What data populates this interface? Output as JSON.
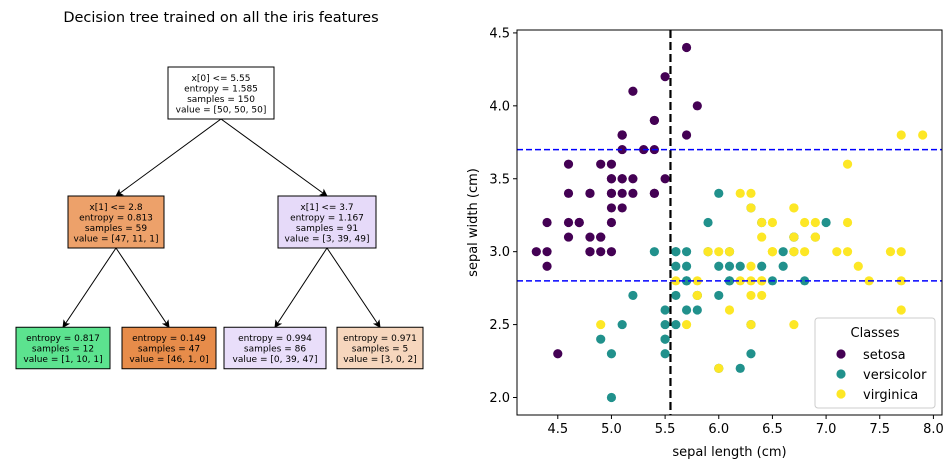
{
  "tree": {
    "title": "Decision tree trained on all the iris features",
    "nodes": [
      {
        "id": "root",
        "lines": [
          "x[0] <= 5.55",
          "entropy = 1.585",
          "samples = 150",
          "value = [50, 50, 50]"
        ],
        "fill": "#ffffff"
      },
      {
        "id": "left",
        "lines": [
          "x[1] <= 2.8",
          "entropy = 0.813",
          "samples = 59",
          "value = [47, 11, 1]"
        ],
        "fill": "#eda16a"
      },
      {
        "id": "right",
        "lines": [
          "x[1] <= 3.7",
          "entropy = 1.167",
          "samples = 91",
          "value = [3, 39, 49]"
        ],
        "fill": "#e6daf9"
      },
      {
        "id": "leaf-ll",
        "lines": [
          "entropy = 0.817",
          "samples = 12",
          "value = [1, 10, 1]"
        ],
        "fill": "#5ce38f"
      },
      {
        "id": "leaf-lr",
        "lines": [
          "entropy = 0.149",
          "samples = 47",
          "value = [46, 1, 0]"
        ],
        "fill": "#e78c4a"
      },
      {
        "id": "leaf-rl",
        "lines": [
          "entropy = 0.994",
          "samples = 86",
          "value = [0, 39, 47]"
        ],
        "fill": "#e9defa"
      },
      {
        "id": "leaf-rr",
        "lines": [
          "entropy = 0.971",
          "samples = 5",
          "value = [3, 0, 2]"
        ],
        "fill": "#f6d6bd"
      }
    ]
  },
  "chart_data": {
    "type": "scatter",
    "xlabel": "sepal length (cm)",
    "ylabel": "sepal width (cm)",
    "xlim": [
      4.12,
      8.08
    ],
    "ylim": [
      1.88,
      4.52
    ],
    "xticks": [
      4.5,
      5.0,
      5.5,
      6.0,
      6.5,
      7.0,
      7.5,
      8.0
    ],
    "yticks": [
      2.0,
      2.5,
      3.0,
      3.5,
      4.0,
      4.5
    ],
    "grid": false,
    "legend": {
      "title": "Classes",
      "placement": "bottom-right"
    },
    "thresholds": {
      "vertical": {
        "x": 5.55,
        "color": "#000000"
      },
      "horizontal": [
        {
          "y": 3.7,
          "color": "#0000ff"
        },
        {
          "y": 2.8,
          "color": "#0000ff"
        }
      ]
    },
    "series": [
      {
        "name": "setosa",
        "color": "#440154",
        "points": [
          [
            5.1,
            3.5
          ],
          [
            4.9,
            3.0
          ],
          [
            4.7,
            3.2
          ],
          [
            4.6,
            3.1
          ],
          [
            5.0,
            3.6
          ],
          [
            5.4,
            3.9
          ],
          [
            4.6,
            3.4
          ],
          [
            5.0,
            3.4
          ],
          [
            4.4,
            2.9
          ],
          [
            4.9,
            3.1
          ],
          [
            5.4,
            3.7
          ],
          [
            4.8,
            3.4
          ],
          [
            4.8,
            3.0
          ],
          [
            4.3,
            3.0
          ],
          [
            5.8,
            4.0
          ],
          [
            5.7,
            4.4
          ],
          [
            5.4,
            3.9
          ],
          [
            5.1,
            3.5
          ],
          [
            5.7,
            3.8
          ],
          [
            5.1,
            3.8
          ],
          [
            5.4,
            3.4
          ],
          [
            5.1,
            3.7
          ],
          [
            4.6,
            3.6
          ],
          [
            5.1,
            3.3
          ],
          [
            4.8,
            3.4
          ],
          [
            5.0,
            3.0
          ],
          [
            5.0,
            3.4
          ],
          [
            5.2,
            3.5
          ],
          [
            5.2,
            3.4
          ],
          [
            4.7,
            3.2
          ],
          [
            4.8,
            3.1
          ],
          [
            5.4,
            3.4
          ],
          [
            5.2,
            4.1
          ],
          [
            5.5,
            4.2
          ],
          [
            4.9,
            3.1
          ],
          [
            5.0,
            3.2
          ],
          [
            5.5,
            3.5
          ],
          [
            4.9,
            3.6
          ],
          [
            4.4,
            3.0
          ],
          [
            5.1,
            3.4
          ],
          [
            5.0,
            3.5
          ],
          [
            4.5,
            2.3
          ],
          [
            4.4,
            3.2
          ],
          [
            5.0,
            3.5
          ],
          [
            5.1,
            3.8
          ],
          [
            4.8,
            3.0
          ],
          [
            5.1,
            3.8
          ],
          [
            4.6,
            3.2
          ],
          [
            5.3,
            3.7
          ],
          [
            5.0,
            3.3
          ]
        ]
      },
      {
        "name": "versicolor",
        "color": "#21918c",
        "points": [
          [
            7.0,
            3.2
          ],
          [
            6.4,
            3.2
          ],
          [
            6.9,
            3.1
          ],
          [
            5.5,
            2.3
          ],
          [
            6.5,
            2.8
          ],
          [
            5.7,
            2.8
          ],
          [
            6.3,
            3.3
          ],
          [
            4.9,
            2.4
          ],
          [
            6.6,
            2.9
          ],
          [
            5.2,
            2.7
          ],
          [
            5.0,
            2.0
          ],
          [
            5.9,
            3.0
          ],
          [
            6.0,
            2.2
          ],
          [
            6.1,
            2.9
          ],
          [
            5.6,
            2.9
          ],
          [
            6.7,
            3.1
          ],
          [
            5.6,
            3.0
          ],
          [
            5.8,
            2.7
          ],
          [
            6.2,
            2.2
          ],
          [
            5.6,
            2.5
          ],
          [
            5.9,
            3.2
          ],
          [
            6.1,
            2.8
          ],
          [
            6.3,
            2.5
          ],
          [
            6.1,
            2.8
          ],
          [
            6.4,
            2.9
          ],
          [
            6.6,
            3.0
          ],
          [
            6.8,
            2.8
          ],
          [
            6.7,
            3.0
          ],
          [
            6.0,
            2.9
          ],
          [
            5.7,
            2.6
          ],
          [
            5.5,
            2.4
          ],
          [
            5.5,
            2.4
          ],
          [
            5.8,
            2.7
          ],
          [
            6.0,
            2.7
          ],
          [
            5.4,
            3.0
          ],
          [
            6.0,
            3.4
          ],
          [
            6.7,
            3.1
          ],
          [
            6.3,
            2.3
          ],
          [
            5.6,
            3.0
          ],
          [
            5.5,
            2.5
          ],
          [
            5.5,
            2.6
          ],
          [
            6.1,
            3.0
          ],
          [
            5.8,
            2.6
          ],
          [
            5.0,
            2.3
          ],
          [
            5.6,
            2.7
          ],
          [
            5.7,
            3.0
          ],
          [
            5.7,
            2.9
          ],
          [
            6.2,
            2.9
          ],
          [
            5.1,
            2.5
          ],
          [
            5.7,
            2.8
          ]
        ]
      },
      {
        "name": "virginica",
        "color": "#fde725",
        "points": [
          [
            6.3,
            3.3
          ],
          [
            5.8,
            2.7
          ],
          [
            7.1,
            3.0
          ],
          [
            6.3,
            2.9
          ],
          [
            6.5,
            3.0
          ],
          [
            7.6,
            3.0
          ],
          [
            4.9,
            2.5
          ],
          [
            7.3,
            2.9
          ],
          [
            6.7,
            2.5
          ],
          [
            7.2,
            3.6
          ],
          [
            6.5,
            3.2
          ],
          [
            6.4,
            2.7
          ],
          [
            6.8,
            3.0
          ],
          [
            5.7,
            2.5
          ],
          [
            5.8,
            2.8
          ],
          [
            6.4,
            3.2
          ],
          [
            6.5,
            3.0
          ],
          [
            7.7,
            3.8
          ],
          [
            7.7,
            2.6
          ],
          [
            6.0,
            2.2
          ],
          [
            6.9,
            3.2
          ],
          [
            5.6,
            2.8
          ],
          [
            7.7,
            2.8
          ],
          [
            6.3,
            2.7
          ],
          [
            6.7,
            3.3
          ],
          [
            7.2,
            3.2
          ],
          [
            6.2,
            2.8
          ],
          [
            6.1,
            3.0
          ],
          [
            6.4,
            2.8
          ],
          [
            7.2,
            3.0
          ],
          [
            7.4,
            2.8
          ],
          [
            7.9,
            3.8
          ],
          [
            6.4,
            2.8
          ],
          [
            6.3,
            2.8
          ],
          [
            6.1,
            2.6
          ],
          [
            7.7,
            3.0
          ],
          [
            6.3,
            3.4
          ],
          [
            6.4,
            3.1
          ],
          [
            6.0,
            3.0
          ],
          [
            6.9,
            3.1
          ],
          [
            6.7,
            3.1
          ],
          [
            6.9,
            3.1
          ],
          [
            5.8,
            2.7
          ],
          [
            6.8,
            3.2
          ],
          [
            6.7,
            3.3
          ],
          [
            6.7,
            3.0
          ],
          [
            6.3,
            2.5
          ],
          [
            6.5,
            3.0
          ],
          [
            6.2,
            3.4
          ],
          [
            5.9,
            3.0
          ]
        ]
      }
    ]
  }
}
